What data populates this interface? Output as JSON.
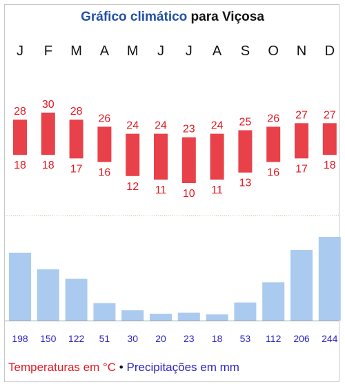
{
  "header": {
    "title_part1": "Gráfico climático",
    "title_part2": " para Viçosa"
  },
  "legend": {
    "temp": "Temperaturas em °C",
    "separator": " • ",
    "precip": "Precipitações em mm"
  },
  "colors": {
    "temp_bar": "#e8414a",
    "temp_text": "#e8151f",
    "precip_bar": "#aacbef",
    "precip_text": "#2a22c8",
    "title_blue": "#2251a6"
  },
  "chart_data": {
    "type": "bar",
    "categories": [
      "J",
      "F",
      "M",
      "A",
      "M",
      "J",
      "J",
      "A",
      "S",
      "O",
      "N",
      "D"
    ],
    "series": [
      {
        "name": "Temperaturas em °C (máx)",
        "values": [
          28,
          30,
          28,
          26,
          24,
          24,
          23,
          24,
          25,
          26,
          27,
          27
        ]
      },
      {
        "name": "Temperaturas em °C (mín)",
        "values": [
          18,
          18,
          17,
          16,
          12,
          11,
          10,
          11,
          13,
          16,
          17,
          18
        ]
      },
      {
        "name": "Precipitações em mm",
        "values": [
          198,
          150,
          122,
          51,
          30,
          20,
          23,
          18,
          53,
          112,
          206,
          244
        ]
      }
    ],
    "title": "Gráfico climático para Viçosa"
  }
}
